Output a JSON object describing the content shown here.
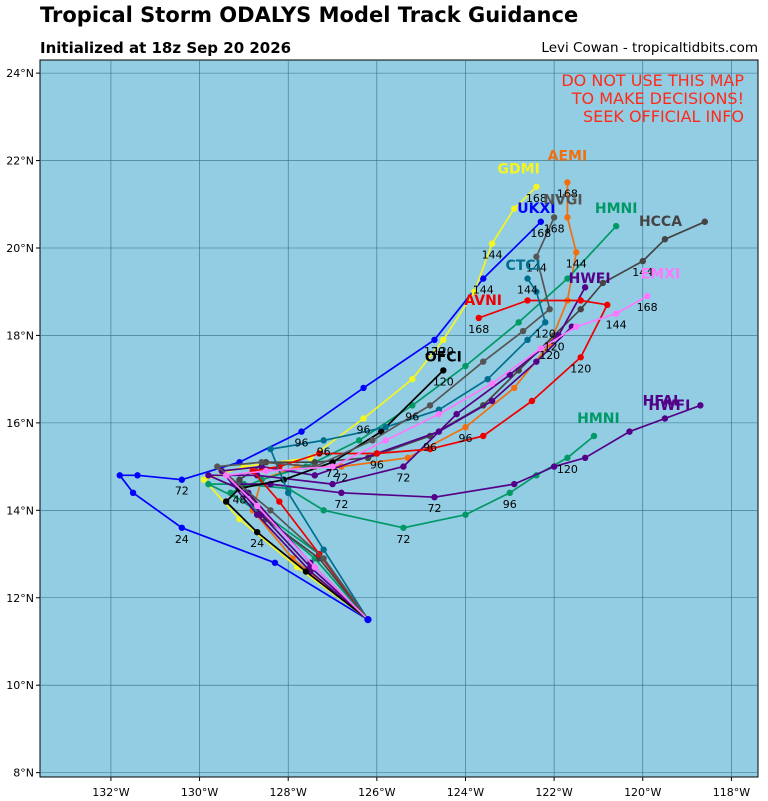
{
  "header": {
    "title": "Tropical Storm ODALYS Model Track Guidance",
    "subtitle": "Initialized at 18z Sep 20 2026",
    "credit": "Levi Cowan - tropicaltidbits.com"
  },
  "warning": [
    "DO NOT USE THIS MAP",
    "TO MAKE DECISIONS!",
    "SEEK OFFICIAL INFO"
  ],
  "colors": {
    "ocean": "#93cde3",
    "grid": "#2f6f86",
    "warning": "#ff2a1a"
  },
  "axes": {
    "lon_range": [
      -133.6,
      -117.4
    ],
    "lat_range": [
      7.9,
      24.3
    ],
    "lon_ticks": [
      -132,
      -130,
      -128,
      -126,
      -124,
      -122,
      -120,
      -118
    ],
    "lat_ticks": [
      8,
      10,
      12,
      14,
      16,
      18,
      20,
      22,
      24
    ],
    "lon_tick_labels": [
      "132°W",
      "130°W",
      "128°W",
      "126°W",
      "124°W",
      "122°W",
      "120°W",
      "118°W"
    ],
    "lat_tick_labels": [
      "8°N",
      "10°N",
      "12°N",
      "14°N",
      "16°N",
      "18°N",
      "20°N",
      "22°N",
      "24°N"
    ]
  },
  "chart_data": {
    "type": "scatter",
    "origin": [
      -126.2,
      11.5
    ],
    "tracks": [
      {
        "name": "UKXI",
        "color": "#0000ff",
        "points": [
          [
            -126.2,
            11.5
          ],
          [
            -128.3,
            12.8
          ],
          [
            -130.4,
            13.6
          ],
          [
            -131.5,
            14.4
          ],
          [
            -131.8,
            14.8
          ],
          [
            -131.4,
            14.8
          ],
          [
            -130.4,
            14.7
          ],
          [
            -129.1,
            15.1
          ],
          [
            -127.7,
            15.8
          ],
          [
            -126.3,
            16.8
          ],
          [
            -124.7,
            17.9
          ],
          [
            -123.6,
            19.3
          ],
          [
            -122.3,
            20.6
          ]
        ],
        "hour_labels": [
          [
            -130.4,
            13.6,
            "24"
          ],
          [
            -130.4,
            14.7,
            "72"
          ],
          [
            -127.7,
            15.8,
            "96"
          ],
          [
            -124.7,
            17.9,
            "120"
          ],
          [
            -123.6,
            19.3,
            "144"
          ],
          [
            -122.3,
            20.6,
            "168"
          ]
        ],
        "name_pos": [
          -122.4,
          20.8
        ]
      },
      {
        "name": "GDMI",
        "color": "#f5f520",
        "points": [
          [
            -126.2,
            11.5
          ],
          [
            -127.8,
            12.7
          ],
          [
            -129.1,
            13.8
          ],
          [
            -129.9,
            14.7
          ],
          [
            -129.0,
            15.0
          ],
          [
            -127.5,
            15.2
          ],
          [
            -126.3,
            16.1
          ],
          [
            -125.2,
            17.0
          ],
          [
            -124.5,
            17.9
          ],
          [
            -123.8,
            19.0
          ],
          [
            -123.4,
            20.1
          ],
          [
            -122.9,
            20.9
          ],
          [
            -122.4,
            21.4
          ]
        ],
        "hour_labels": [
          [
            -126.3,
            16.1,
            "96"
          ],
          [
            -124.5,
            17.9,
            "120"
          ],
          [
            -123.4,
            20.1,
            "144"
          ],
          [
            -122.4,
            21.4,
            "168"
          ]
        ],
        "name_pos": [
          -122.8,
          21.7
        ]
      },
      {
        "name": "AEMI",
        "color": "#f07010",
        "points": [
          [
            -126.2,
            11.5
          ],
          [
            -127.9,
            12.9
          ],
          [
            -128.8,
            14.0
          ],
          [
            -128.6,
            14.7
          ],
          [
            -127.8,
            15.0
          ],
          [
            -126.8,
            15.0
          ],
          [
            -125.3,
            15.2
          ],
          [
            -124.0,
            15.9
          ],
          [
            -122.9,
            16.8
          ],
          [
            -122.1,
            17.8
          ],
          [
            -121.7,
            18.8
          ],
          [
            -121.5,
            19.9
          ],
          [
            -121.7,
            20.7
          ],
          [
            -121.7,
            21.5
          ]
        ],
        "hour_labels": [
          [
            -126.8,
            15.0,
            "72"
          ],
          [
            -124.0,
            15.9,
            "96"
          ],
          [
            -122.1,
            17.8,
            "120"
          ],
          [
            -121.5,
            19.9,
            "144"
          ],
          [
            -121.7,
            21.5,
            "168"
          ]
        ],
        "name_pos": [
          -121.7,
          22.0
        ]
      },
      {
        "name": "HMNI",
        "color": "#009966",
        "points": [
          [
            -126.2,
            11.5
          ],
          [
            -127.3,
            13.0
          ],
          [
            -128.8,
            14.1
          ],
          [
            -129.8,
            14.6
          ],
          [
            -129.0,
            14.6
          ],
          [
            -128.0,
            14.5
          ],
          [
            -127.2,
            14.0
          ],
          [
            -125.4,
            13.6
          ],
          [
            -124.0,
            13.9
          ],
          [
            -123.0,
            14.4
          ],
          [
            -122.4,
            14.8
          ],
          [
            -121.7,
            15.2
          ],
          [
            -121.1,
            15.7
          ]
        ],
        "hour_labels": [
          [
            -125.4,
            13.6,
            "72"
          ],
          [
            -123.0,
            14.4,
            "96"
          ],
          [
            -121.7,
            15.2,
            "120"
          ]
        ],
        "name_pos": [
          -121.0,
          16.0
        ]
      },
      {
        "name": "HMNI",
        "color": "#009966",
        "points": [
          [
            -126.2,
            11.5
          ],
          [
            -127.4,
            12.9
          ],
          [
            -128.6,
            13.9
          ],
          [
            -129.3,
            14.4
          ],
          [
            -128.6,
            14.7
          ],
          [
            -127.6,
            15.0
          ],
          [
            -126.4,
            15.6
          ],
          [
            -125.2,
            16.4
          ],
          [
            -124.0,
            17.3
          ],
          [
            -122.8,
            18.3
          ],
          [
            -121.7,
            19.3
          ],
          [
            -120.6,
            20.5
          ]
        ],
        "hour_labels": [
          [
            -125.2,
            16.4,
            "96"
          ]
        ],
        "name_pos": [
          -120.6,
          20.8
        ]
      },
      {
        "name": "HCCA",
        "color": "#444444",
        "points": [
          [
            -126.2,
            11.5
          ],
          [
            -127.3,
            12.9
          ],
          [
            -128.5,
            13.8
          ],
          [
            -129.1,
            14.7
          ],
          [
            -128.5,
            15.1
          ],
          [
            -127.4,
            15.1
          ],
          [
            -126.2,
            15.2
          ],
          [
            -124.8,
            15.7
          ],
          [
            -123.6,
            16.4
          ],
          [
            -122.8,
            17.2
          ],
          [
            -122.0,
            18.0
          ],
          [
            -121.4,
            18.6
          ],
          [
            -120.9,
            19.2
          ],
          [
            -120.0,
            19.7
          ],
          [
            -119.5,
            20.2
          ],
          [
            -118.6,
            20.6
          ]
        ],
        "hour_labels": [
          [
            -124.8,
            15.7,
            "96"
          ],
          [
            -122.0,
            18.0,
            "120"
          ],
          [
            -120.0,
            19.7,
            "144"
          ]
        ],
        "name_pos": [
          -119.6,
          20.5
        ]
      },
      {
        "name": "HWFI",
        "color": "#550088",
        "points": [
          [
            -126.2,
            11.5
          ],
          [
            -127.5,
            12.7
          ],
          [
            -128.6,
            13.9
          ],
          [
            -129.2,
            14.6
          ],
          [
            -128.4,
            14.6
          ],
          [
            -126.8,
            14.4
          ],
          [
            -124.7,
            14.3
          ],
          [
            -122.9,
            14.6
          ],
          [
            -122.0,
            15.0
          ],
          [
            -121.3,
            15.2
          ],
          [
            -120.3,
            15.8
          ],
          [
            -119.5,
            16.1
          ],
          [
            -118.7,
            16.4
          ]
        ],
        "hour_labels": [
          [
            -126.8,
            14.4,
            "72"
          ],
          [
            -124.7,
            14.3,
            "72"
          ]
        ],
        "name_pos": [
          -119.4,
          16.3
        ]
      },
      {
        "name": "HWFI",
        "color": "#550088",
        "points": [
          [
            -126.2,
            11.5
          ],
          [
            -127.5,
            12.8
          ],
          [
            -128.9,
            14.4
          ],
          [
            -129.8,
            14.8
          ],
          [
            -128.7,
            14.8
          ],
          [
            -127.0,
            14.6
          ],
          [
            -125.4,
            15.0
          ],
          [
            -124.2,
            16.2
          ],
          [
            -123.0,
            17.1
          ],
          [
            -121.9,
            18.0
          ],
          [
            -121.3,
            19.1
          ]
        ],
        "hour_labels": [
          [
            -125.4,
            15.0,
            "72"
          ]
        ],
        "name_pos": [
          -121.2,
          19.2
        ]
      },
      {
        "name": "HFAI",
        "color": "#550088",
        "points": [
          [
            -126.2,
            11.5
          ],
          [
            -127.5,
            12.6
          ],
          [
            -128.7,
            13.9
          ],
          [
            -129.5,
            14.9
          ],
          [
            -128.6,
            15.0
          ],
          [
            -127.4,
            14.8
          ],
          [
            -126.0,
            15.3
          ],
          [
            -124.6,
            15.8
          ],
          [
            -123.4,
            16.5
          ],
          [
            -122.4,
            17.4
          ],
          [
            -121.6,
            18.2
          ]
        ],
        "hour_labels": [],
        "name_pos": [
          -119.6,
          16.4
        ]
      },
      {
        "name": "AVNI",
        "color": "#ee0000",
        "points": [
          [
            -126.2,
            11.5
          ],
          [
            -127.3,
            13.0
          ],
          [
            -128.2,
            14.2
          ],
          [
            -128.8,
            14.9
          ],
          [
            -128.2,
            15.0
          ],
          [
            -127.3,
            15.3
          ],
          [
            -126.0,
            15.3
          ],
          [
            -124.8,
            15.4
          ],
          [
            -123.6,
            15.7
          ],
          [
            -122.5,
            16.5
          ],
          [
            -121.4,
            17.5
          ],
          [
            -120.8,
            18.7
          ],
          [
            -121.4,
            18.8
          ],
          [
            -122.6,
            18.8
          ],
          [
            -123.7,
            18.4
          ]
        ],
        "hour_labels": [
          [
            -126.0,
            15.3,
            "96"
          ],
          [
            -121.4,
            17.5,
            "120"
          ],
          [
            -123.7,
            18.4,
            "168"
          ]
        ],
        "name_pos": [
          -123.6,
          18.7
        ]
      },
      {
        "name": "OFCI",
        "color": "#000000",
        "points": [
          [
            -126.2,
            11.5
          ],
          [
            -127.6,
            12.6
          ],
          [
            -128.7,
            13.5
          ],
          [
            -129.4,
            14.2
          ],
          [
            -129.1,
            14.5
          ],
          [
            -128.1,
            14.7
          ],
          [
            -127.0,
            15.1
          ],
          [
            -125.9,
            15.8
          ],
          [
            -124.5,
            17.2
          ]
        ],
        "hour_labels": [
          [
            -128.7,
            13.5,
            "24"
          ],
          [
            -129.1,
            14.5,
            "48"
          ],
          [
            -127.0,
            15.1,
            "72"
          ],
          [
            -124.5,
            17.2,
            "120"
          ]
        ],
        "name_pos": [
          -124.5,
          17.4
        ]
      },
      {
        "name": "CTCI",
        "color": "#006f8f",
        "points": [
          [
            -126.2,
            11.5
          ],
          [
            -127.2,
            13.1
          ],
          [
            -128.0,
            14.4
          ],
          [
            -128.4,
            15.4
          ],
          [
            -127.2,
            15.6
          ],
          [
            -125.8,
            15.9
          ],
          [
            -124.6,
            16.3
          ],
          [
            -123.5,
            17.0
          ],
          [
            -122.6,
            17.9
          ],
          [
            -122.2,
            18.3
          ],
          [
            -122.4,
            19.0
          ],
          [
            -122.6,
            19.3
          ]
        ],
        "hour_labels": [
          [
            -127.2,
            15.6,
            "96"
          ],
          [
            -122.2,
            18.3,
            "120"
          ],
          [
            -122.6,
            19.3,
            "144"
          ]
        ],
        "name_pos": [
          -122.7,
          19.5
        ]
      },
      {
        "name": "NVGI",
        "color": "#555555",
        "points": [
          [
            -126.2,
            11.5
          ],
          [
            -127.2,
            12.9
          ],
          [
            -128.4,
            14.0
          ],
          [
            -129.6,
            15.0
          ],
          [
            -128.6,
            15.1
          ],
          [
            -127.4,
            15.0
          ],
          [
            -126.1,
            15.6
          ],
          [
            -124.8,
            16.4
          ],
          [
            -123.6,
            17.4
          ],
          [
            -122.7,
            18.1
          ],
          [
            -122.1,
            18.6
          ],
          [
            -122.4,
            19.8
          ],
          [
            -122.0,
            20.7
          ]
        ],
        "hour_labels": [
          [
            -122.4,
            19.8,
            "144"
          ],
          [
            -122.0,
            20.7,
            "168"
          ]
        ],
        "name_pos": [
          -121.8,
          21.0
        ]
      },
      {
        "name": "EMXI",
        "color": "#ff77ff",
        "points": [
          [
            -126.2,
            11.5
          ],
          [
            -127.4,
            12.7
          ],
          [
            -128.7,
            14.1
          ],
          [
            -129.4,
            14.8
          ],
          [
            -128.5,
            14.9
          ],
          [
            -127.0,
            15.0
          ],
          [
            -125.8,
            15.6
          ],
          [
            -124.6,
            16.2
          ],
          [
            -123.4,
            16.9
          ],
          [
            -122.3,
            17.7
          ],
          [
            -121.5,
            18.2
          ],
          [
            -120.6,
            18.5
          ],
          [
            -119.9,
            18.9
          ]
        ],
        "hour_labels": [
          [
            -120.6,
            18.5,
            "144"
          ],
          [
            -119.9,
            18.9,
            "168"
          ]
        ],
        "name_pos": [
          -119.6,
          19.3
        ]
      }
    ],
    "series_names": [
      "UKXI",
      "GDMI",
      "AEMI",
      "HMNI",
      "HCCA",
      "HWFI",
      "HFAI",
      "AVNI",
      "OFCI",
      "CTCI",
      "EMXI"
    ]
  }
}
